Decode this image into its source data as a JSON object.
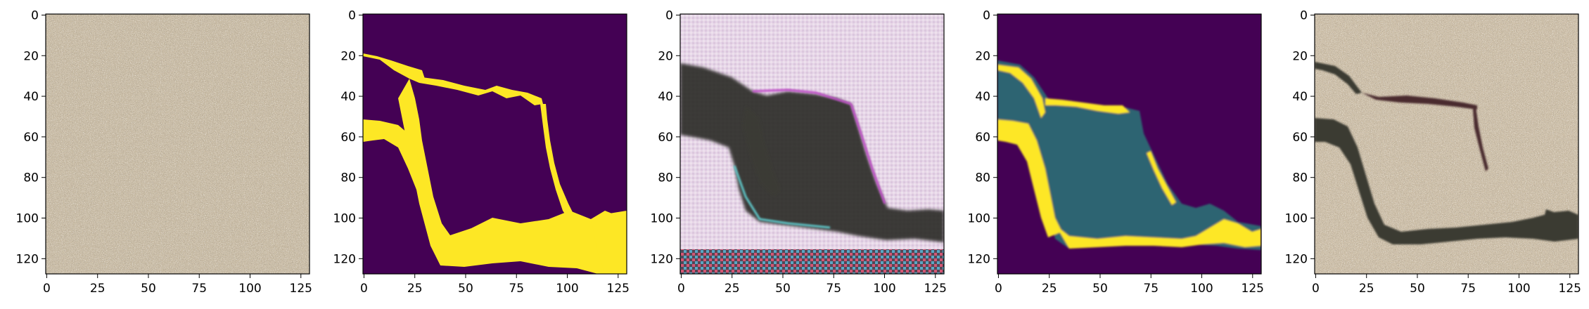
{
  "figure": {
    "panels": [
      {
        "id": "input-texture",
        "kind": "photo-texture",
        "colors": {
          "base": "#c9bca5",
          "speck_dark": "#8e816c",
          "speck_light": "#e2d8c6"
        }
      },
      {
        "id": "ground-truth-mask",
        "kind": "binary-mask",
        "colors": {
          "background": "#440154",
          "foreground": "#fde725"
        }
      },
      {
        "id": "raw-generated-texture",
        "kind": "noisy-synthesis",
        "colors": {
          "base": "#e8d6e6",
          "crack": "#2b2c28",
          "fringe_magenta": "#c04cc8",
          "fringe_cyan": "#5fc6c8"
        }
      },
      {
        "id": "predicted-mask",
        "kind": "soft-mask",
        "colors": {
          "background": "#440154",
          "foreground": "#fde725",
          "edge": "#21a585"
        }
      },
      {
        "id": "composited-texture",
        "kind": "photo-texture-with-crack",
        "colors": {
          "base": "#cdbfa8",
          "crack": "#3a3a33"
        }
      }
    ],
    "x_ticks": [
      "0",
      "25",
      "50",
      "75",
      "100",
      "125"
    ],
    "y_ticks": [
      "0",
      "20",
      "40",
      "60",
      "80",
      "100",
      "120"
    ]
  }
}
